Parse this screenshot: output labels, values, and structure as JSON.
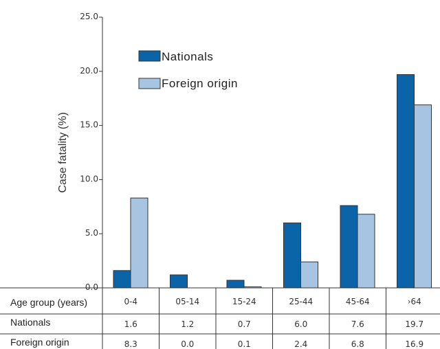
{
  "chart_data": {
    "type": "bar",
    "ylabel": "Case fatality (%)",
    "ylim": [
      0,
      25
    ],
    "yticks": [
      "0.0",
      "5.0",
      "10.0",
      "15.0",
      "20.0",
      "25.0"
    ],
    "grid": false,
    "legend_position": "top-left",
    "categories": [
      "0-4",
      "05-14",
      "15-24",
      "25-44",
      "45-64",
      "›64"
    ],
    "series": [
      {
        "name": "Nationals",
        "color": "#0b64a8",
        "values": [
          1.6,
          1.2,
          0.7,
          6.0,
          7.6,
          19.7
        ],
        "labels": [
          "1.6",
          "1.2",
          "0.7",
          "6.0",
          "7.6",
          "19.7"
        ]
      },
      {
        "name": "Foreign origin",
        "color": "#a7c4e2",
        "values": [
          8.3,
          0.0,
          0.1,
          2.4,
          6.8,
          16.9
        ],
        "labels": [
          "8.3",
          "0.0",
          "0.1",
          "2.4",
          "6.8",
          "16.9"
        ]
      }
    ],
    "table": {
      "header_label": "Age group (years)",
      "row_labels": [
        "Nationals",
        "Foreign origin"
      ]
    }
  }
}
